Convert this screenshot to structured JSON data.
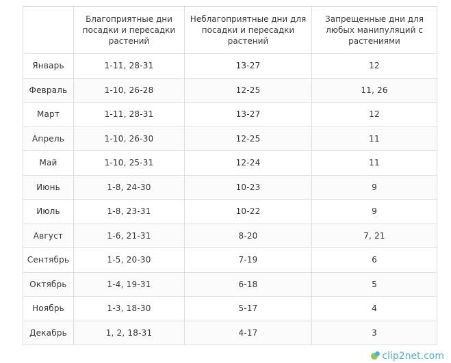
{
  "table": {
    "headers": [
      "",
      "Благоприятные дни посадки и пересадки растений",
      "Неблагоприятные дни для посадки и пересадки растений",
      "Запрещенные дни для любых манипуляций с растениями"
    ],
    "rows": [
      [
        "Январь",
        "1-11, 28-31",
        "13-27",
        "12"
      ],
      [
        "Февраль",
        "1-10, 26-28",
        "12-25",
        "11, 26"
      ],
      [
        "Март",
        "1-11, 28-31",
        "13-27",
        "12"
      ],
      [
        "Апрель",
        "1-10, 26-30",
        "12-25",
        "11"
      ],
      [
        "Май",
        "1-10, 25-31",
        "12-24",
        "11"
      ],
      [
        "Июнь",
        "1-8, 24-30",
        "10-23",
        "9"
      ],
      [
        "Июль",
        "1-8, 23-31",
        "10-22",
        "9"
      ],
      [
        "Август",
        "1-6, 21-31",
        "8-20",
        "7, 21"
      ],
      [
        "Сентябрь",
        "1-5, 20-30",
        "7-19",
        "6"
      ],
      [
        "Октябрь",
        "1-4, 19-31",
        "6-18",
        "5"
      ],
      [
        "Ноябрь",
        "1-3, 18-30",
        "5-17",
        "4"
      ],
      [
        "Декабрь",
        "1, 2, 18-31",
        "4-17",
        "3"
      ]
    ]
  },
  "watermark": {
    "text": "clip2net.com"
  }
}
